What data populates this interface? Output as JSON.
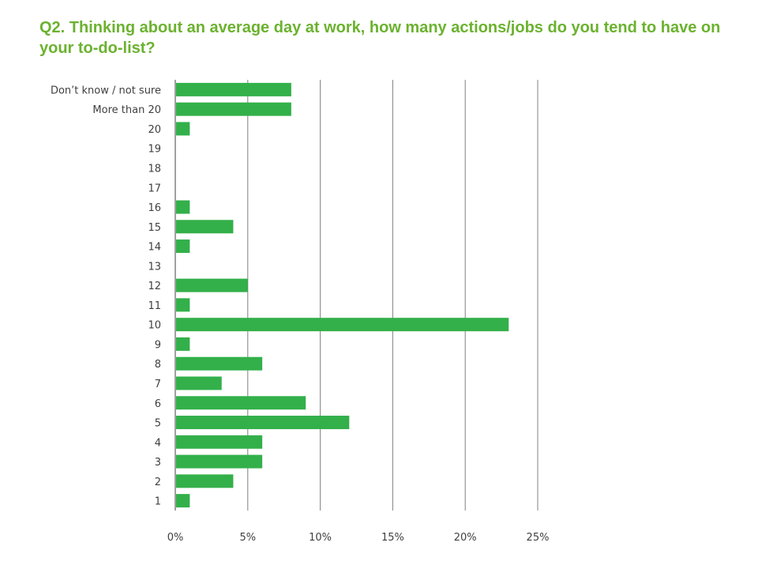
{
  "slide": {
    "title": "Q2.  Thinking about an average day at work, how many actions/jobs do you tend to have on your  to-do-list?"
  },
  "colors": {
    "title": "#6bb22f",
    "bar": "#33b04a",
    "grid": "#808080"
  },
  "chart_data": {
    "type": "bar",
    "orientation": "horizontal",
    "title": "Q2.  Thinking about an average day at work, how many actions/jobs do you tend to have on your  to-do-list?",
    "categories": [
      "Don’t know / not sure",
      "More than 20",
      "20",
      "19",
      "18",
      "17",
      "16",
      "15",
      "14",
      "13",
      "12",
      "11",
      "10",
      "9",
      "8",
      "7",
      "6",
      "5",
      "4",
      "3",
      "2",
      "1"
    ],
    "values": [
      8,
      8,
      1,
      0,
      0,
      0,
      1,
      4,
      1,
      0,
      5,
      1,
      23,
      1,
      6,
      3.2,
      9,
      12,
      6,
      6,
      4,
      1
    ],
    "xlim": [
      0,
      25
    ],
    "xticks": [
      0,
      5,
      10,
      15,
      20,
      25
    ],
    "xtick_labels": [
      "0%",
      "5%",
      "10%",
      "15%",
      "20%",
      "25%"
    ],
    "grid": true,
    "legend": "none",
    "xlabel": "",
    "ylabel": ""
  }
}
